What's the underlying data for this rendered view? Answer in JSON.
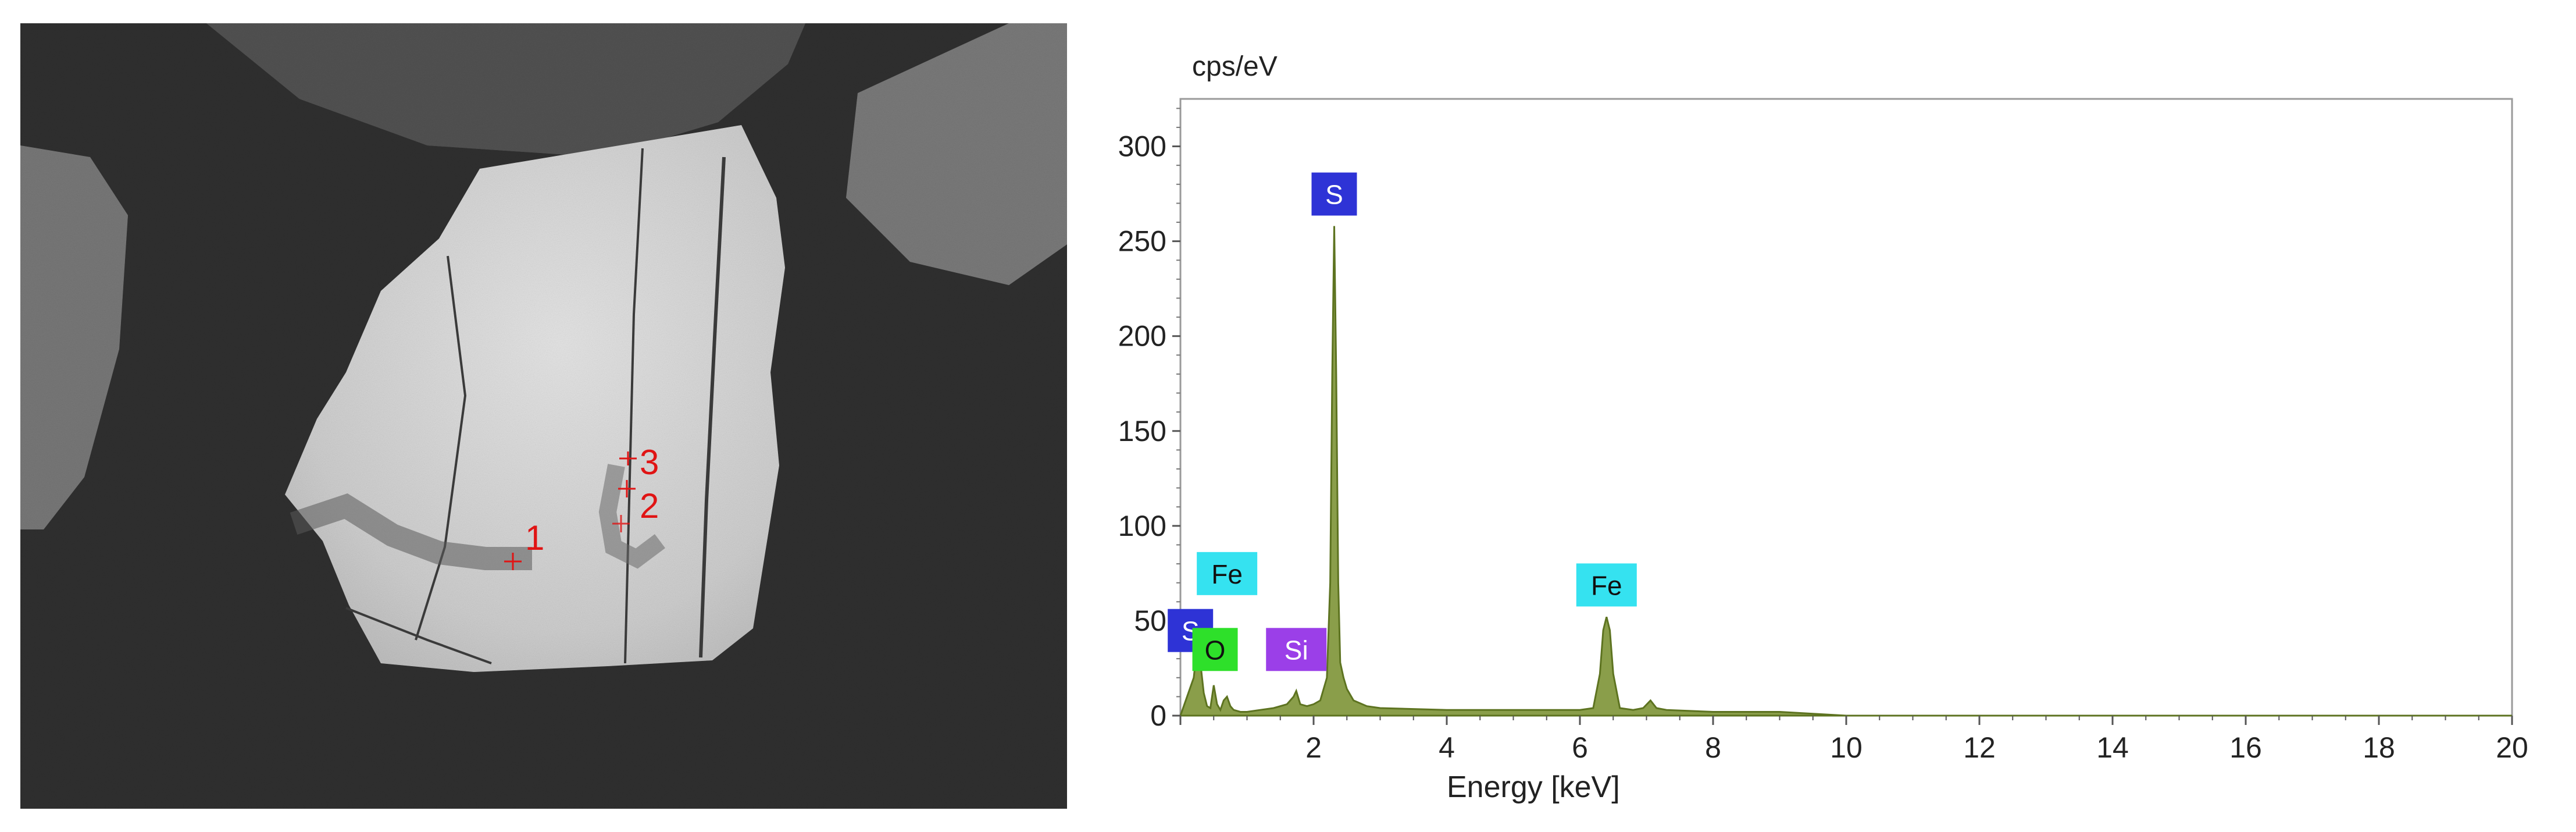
{
  "sem_image": {
    "point_labels": [
      "1",
      "2",
      "3"
    ],
    "label_color": "#e01414"
  },
  "chart_data": {
    "type": "area",
    "ylabel": "cps/eV",
    "xlabel": "Energy [keV]",
    "xlim": [
      0,
      20
    ],
    "ylim": [
      0,
      325
    ],
    "xticks": [
      "2",
      "4",
      "6",
      "8",
      "10",
      "12",
      "14",
      "16",
      "18",
      "20"
    ],
    "yticks": [
      "0",
      "50",
      "100",
      "150",
      "200",
      "250",
      "300"
    ],
    "fill_color": "#8a9e4a",
    "line_color": "#5d7320",
    "series": [
      {
        "x": [
          0.0,
          0.2,
          0.25,
          0.3,
          0.35,
          0.4,
          0.45,
          0.5,
          0.55,
          0.6,
          0.65,
          0.7,
          0.75,
          0.8,
          0.9,
          1.0,
          1.2,
          1.4,
          1.6,
          1.7,
          1.74,
          1.8,
          1.9,
          2.0,
          2.1,
          2.2,
          2.25,
          2.28,
          2.31,
          2.34,
          2.37,
          2.4,
          2.45,
          2.5,
          2.6,
          2.8,
          3.0,
          4.0,
          5.0,
          6.0,
          6.2,
          6.3,
          6.35,
          6.4,
          6.45,
          6.5,
          6.6,
          6.8,
          6.95,
          7.06,
          7.15,
          7.3,
          8.0,
          9.0,
          9.5,
          10.0,
          20.0
        ],
        "y": [
          0,
          20,
          36,
          28,
          12,
          5,
          4,
          16,
          6,
          3,
          8,
          10,
          5,
          3,
          2,
          2,
          3,
          4,
          6,
          10,
          13,
          6,
          5,
          6,
          8,
          20,
          70,
          180,
          258,
          180,
          70,
          28,
          20,
          14,
          8,
          5,
          4,
          3,
          3,
          3,
          4,
          22,
          45,
          52,
          45,
          22,
          4,
          3,
          4,
          8,
          4,
          3,
          2,
          2,
          1,
          0,
          0
        ]
      }
    ],
    "peak_labels": [
      {
        "text": "S",
        "x": 2.31,
        "y": 258,
        "bg": "#2e33d6",
        "fg": "#ffffff"
      },
      {
        "text": "Fe",
        "x": 6.4,
        "y": 52,
        "bg": "#35e2f0",
        "fg": "#111111"
      },
      {
        "text": "Fe",
        "x": 0.7,
        "y": 58,
        "bg": "#35e2f0",
        "fg": "#111111"
      },
      {
        "text": "S",
        "x": 0.15,
        "y": 28,
        "bg": "#2e33d6",
        "fg": "#ffffff"
      },
      {
        "text": "O",
        "x": 0.52,
        "y": 18,
        "bg": "#2ee02a",
        "fg": "#111111"
      },
      {
        "text": "Si",
        "x": 1.74,
        "y": 18,
        "bg": "#9b3fe8",
        "fg": "#ffffff"
      }
    ]
  }
}
